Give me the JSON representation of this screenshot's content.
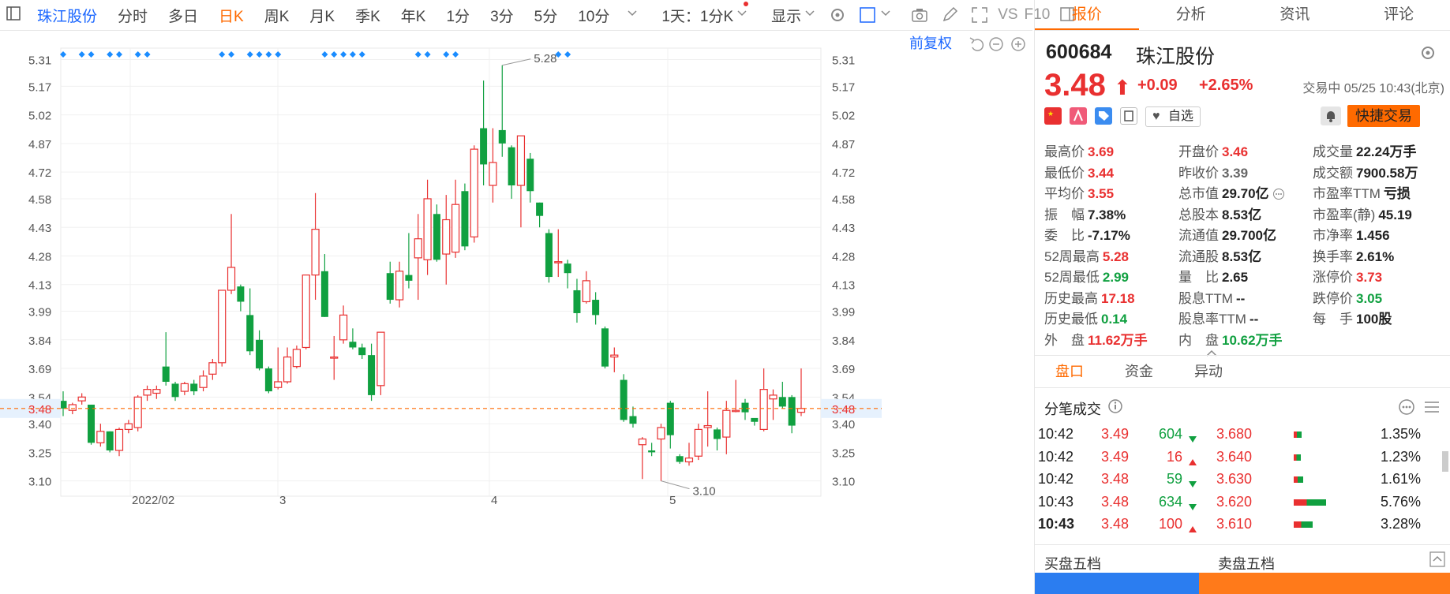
{
  "toolbar": {
    "stock_name": "珠江股份",
    "periods": [
      "分时",
      "多日",
      "日K",
      "周K",
      "月K",
      "季K",
      "年K",
      "1分",
      "3分",
      "5分",
      "10分"
    ],
    "active_period": "日K",
    "interval": "1天：1分K",
    "display": "显示",
    "vs_label": "VS",
    "f10_label": "F10"
  },
  "chart": {
    "adjust_label": "前复权",
    "y_ticks": [
      "5.31",
      "5.17",
      "5.02",
      "4.87",
      "4.72",
      "4.58",
      "4.43",
      "4.28",
      "4.13",
      "3.99",
      "3.84",
      "3.69",
      "3.54",
      "3.40",
      "3.25",
      "3.10"
    ],
    "x_labels": [
      "2022/02",
      "3",
      "4",
      "5"
    ],
    "current_price_label": "3.48",
    "high_label": "5.28",
    "low_label": "3.10",
    "colors": {
      "up": "#e93030",
      "down": "#10a040",
      "price_line": "#ff6a00",
      "marker": "#1a8cff"
    }
  },
  "chart_data": {
    "type": "candlestick",
    "ylim": [
      3.02,
      5.37
    ],
    "current": 3.48,
    "candles": [
      [
        3.52,
        3.48,
        3.57,
        3.44
      ],
      [
        3.47,
        3.5,
        3.51,
        3.45
      ],
      [
        3.52,
        3.54,
        3.56,
        3.5
      ],
      [
        3.5,
        3.3,
        3.5,
        3.29
      ],
      [
        3.3,
        3.36,
        3.4,
        3.28
      ],
      [
        3.36,
        3.26,
        3.36,
        3.25
      ],
      [
        3.26,
        3.37,
        3.38,
        3.23
      ],
      [
        3.37,
        3.4,
        3.42,
        3.35
      ],
      [
        3.38,
        3.54,
        3.55,
        3.36
      ],
      [
        3.55,
        3.58,
        3.6,
        3.52
      ],
      [
        3.56,
        3.58,
        3.6,
        3.53
      ],
      [
        3.7,
        3.62,
        3.88,
        3.6
      ],
      [
        3.61,
        3.54,
        3.62,
        3.52
      ],
      [
        3.57,
        3.61,
        3.62,
        3.55
      ],
      [
        3.61,
        3.57,
        3.63,
        3.55
      ],
      [
        3.59,
        3.65,
        3.68,
        3.57
      ],
      [
        3.66,
        3.72,
        3.74,
        3.63
      ],
      [
        3.72,
        4.1,
        4.1,
        3.7
      ],
      [
        4.1,
        4.22,
        4.5,
        4.08
      ],
      [
        4.12,
        4.04,
        4.13,
        3.99
      ],
      [
        3.97,
        3.78,
        4.11,
        3.76
      ],
      [
        3.84,
        3.69,
        3.89,
        3.68
      ],
      [
        3.69,
        3.57,
        3.7,
        3.56
      ],
      [
        3.59,
        3.62,
        3.8,
        3.58
      ],
      [
        3.62,
        3.75,
        3.8,
        3.61
      ],
      [
        3.7,
        3.79,
        3.81,
        3.69
      ],
      [
        3.8,
        4.18,
        4.18,
        3.79
      ],
      [
        4.18,
        4.42,
        4.61,
        4.05
      ],
      [
        4.2,
        3.96,
        4.29,
        3.96
      ],
      [
        3.75,
        3.75,
        3.86,
        3.63
      ],
      [
        3.84,
        3.97,
        4.02,
        3.82
      ],
      [
        3.83,
        3.8,
        3.9,
        3.79
      ],
      [
        3.8,
        3.76,
        3.82,
        3.74
      ],
      [
        3.76,
        3.55,
        3.82,
        3.52
      ],
      [
        3.6,
        3.88,
        3.88,
        3.55
      ],
      [
        4.19,
        4.05,
        4.25,
        4.03
      ],
      [
        4.05,
        4.2,
        4.25,
        4.01
      ],
      [
        4.18,
        4.15,
        4.4,
        4.11
      ],
      [
        4.27,
        4.37,
        4.5,
        4.05
      ],
      [
        4.26,
        4.58,
        4.68,
        4.18
      ],
      [
        4.5,
        4.26,
        4.55,
        4.25
      ],
      [
        4.29,
        4.47,
        4.6,
        4.13
      ],
      [
        4.3,
        4.55,
        4.68,
        4.27
      ],
      [
        4.62,
        4.33,
        4.66,
        4.31
      ],
      [
        4.38,
        4.84,
        4.86,
        4.35
      ],
      [
        4.95,
        4.76,
        5.2,
        4.65
      ],
      [
        4.65,
        4.77,
        4.95,
        4.56
      ],
      [
        4.94,
        4.87,
        5.28,
        4.8
      ],
      [
        4.85,
        4.65,
        4.86,
        4.58
      ],
      [
        4.65,
        4.91,
        4.91,
        4.43
      ],
      [
        4.79,
        4.62,
        4.82,
        4.56
      ],
      [
        4.56,
        4.49,
        4.56,
        4.43
      ],
      [
        4.4,
        4.17,
        4.42,
        4.14
      ],
      [
        4.25,
        4.25,
        4.42,
        4.17
      ],
      [
        4.24,
        4.19,
        4.26,
        4.11
      ],
      [
        4.1,
        3.98,
        4.16,
        3.93
      ],
      [
        4.04,
        4.15,
        4.2,
        4.03
      ],
      [
        4.05,
        3.97,
        4.09,
        3.92
      ],
      [
        3.9,
        3.7,
        3.91,
        3.69
      ],
      [
        3.75,
        3.76,
        3.8,
        3.67
      ],
      [
        3.63,
        3.42,
        3.66,
        3.41
      ],
      [
        3.44,
        3.4,
        3.49,
        3.38
      ],
      [
        3.29,
        3.32,
        3.33,
        3.11
      ],
      [
        3.26,
        3.25,
        3.3,
        3.23
      ],
      [
        3.32,
        3.38,
        3.4,
        3.1
      ],
      [
        3.51,
        3.34,
        3.52,
        3.27
      ],
      [
        3.23,
        3.2,
        3.24,
        3.19
      ],
      [
        3.2,
        3.22,
        3.3,
        3.18
      ],
      [
        3.23,
        3.37,
        3.4,
        3.21
      ],
      [
        3.38,
        3.39,
        3.57,
        3.28
      ],
      [
        3.37,
        3.32,
        3.38,
        3.26
      ],
      [
        3.33,
        3.47,
        3.52,
        3.24
      ],
      [
        3.47,
        3.47,
        3.63,
        3.46
      ],
      [
        3.51,
        3.46,
        3.53,
        3.42
      ],
      [
        3.43,
        3.41,
        3.42,
        3.39
      ],
      [
        3.37,
        3.58,
        3.69,
        3.36
      ],
      [
        3.53,
        3.55,
        3.58,
        3.42
      ],
      [
        3.54,
        3.49,
        3.62,
        3.48
      ],
      [
        3.54,
        3.39,
        3.55,
        3.35
      ],
      [
        3.46,
        3.48,
        3.69,
        3.44
      ]
    ],
    "markers": [
      0,
      2,
      3,
      5,
      6,
      8,
      9,
      17,
      18,
      20,
      21,
      22,
      23,
      28,
      29,
      30,
      31,
      32,
      38,
      39,
      41,
      42,
      53,
      54
    ]
  },
  "panel": {
    "tabs": [
      "报价",
      "分析",
      "资讯",
      "评论"
    ],
    "active_tab": "报价",
    "code": "600684",
    "name": "珠江股份",
    "price": "3.48",
    "change": "+0.09",
    "change_pct": "+2.65%",
    "status": "交易中 05/25 10:43(北京)",
    "watch_label": "自选",
    "quick_trade": "快捷交易",
    "stats": [
      [
        {
          "l": "最高价",
          "v": "3.69",
          "c": "red"
        },
        {
          "l": "开盘价",
          "v": "3.46",
          "c": "red"
        },
        {
          "l": "成交量",
          "v": "22.24万手",
          "c": ""
        }
      ],
      [
        {
          "l": "最低价",
          "v": "3.44",
          "c": "red"
        },
        {
          "l": "昨收价",
          "v": "3.39",
          "c": "gray"
        },
        {
          "l": "成交额",
          "v": "7900.58万",
          "c": ""
        }
      ],
      [
        {
          "l": "平均价",
          "v": "3.55",
          "c": "red"
        },
        {
          "l": "总市值",
          "v": "29.70亿",
          "c": ""
        },
        {
          "l": "市盈率TTM",
          "v": "亏损",
          "c": ""
        }
      ],
      [
        {
          "l": "振　幅",
          "v": "7.38%",
          "c": ""
        },
        {
          "l": "总股本",
          "v": "8.53亿",
          "c": ""
        },
        {
          "l": "市盈率(静)",
          "v": "45.19",
          "c": ""
        }
      ],
      [
        {
          "l": "委　比",
          "v": "-7.17%",
          "c": ""
        },
        {
          "l": "流通值",
          "v": "29.700亿",
          "c": ""
        },
        {
          "l": "市净率",
          "v": "1.456",
          "c": ""
        }
      ],
      [
        {
          "l": "52周最高",
          "v": "5.28",
          "c": "red"
        },
        {
          "l": "流通股",
          "v": "8.53亿",
          "c": ""
        },
        {
          "l": "换手率",
          "v": "2.61%",
          "c": ""
        }
      ],
      [
        {
          "l": "52周最低",
          "v": "2.99",
          "c": "green"
        },
        {
          "l": "量　比",
          "v": "2.65",
          "c": ""
        },
        {
          "l": "涨停价",
          "v": "3.73",
          "c": "red"
        }
      ],
      [
        {
          "l": "历史最高",
          "v": "17.18",
          "c": "red"
        },
        {
          "l": "股息TTM",
          "v": "--",
          "c": ""
        },
        {
          "l": "跌停价",
          "v": "3.05",
          "c": "green"
        }
      ],
      [
        {
          "l": "历史最低",
          "v": "0.14",
          "c": "green"
        },
        {
          "l": "股息率TTM",
          "v": "--",
          "c": ""
        },
        {
          "l": "每　手",
          "v": "100股",
          "c": ""
        }
      ],
      [
        {
          "l": "外　盘",
          "v": "11.62万手",
          "c": "red"
        },
        {
          "l": "内　盘",
          "v": "10.62万手",
          "c": "green"
        },
        {
          "l": "",
          "v": "",
          "c": ""
        }
      ]
    ],
    "subtabs": [
      "盘口",
      "资金",
      "异动"
    ],
    "active_subtab": "盘口",
    "ticks_title": "分笔成交",
    "ticks": [
      {
        "t": "10:42",
        "p": "3.49",
        "v": "604",
        "d": "down",
        "bp": "3.680",
        "pct": "1.35%"
      },
      {
        "t": "10:42",
        "p": "3.49",
        "v": "16",
        "d": "up",
        "bp": "3.640",
        "pct": "1.23%"
      },
      {
        "t": "10:42",
        "p": "3.48",
        "v": "59",
        "d": "down",
        "bp": "3.630",
        "pct": "1.61%"
      },
      {
        "t": "10:43",
        "p": "3.48",
        "v": "634",
        "d": "down",
        "bp": "3.620",
        "pct": "5.76%"
      },
      {
        "t": "10:43",
        "p": "3.48",
        "v": "100",
        "d": "up",
        "bp": "3.610",
        "pct": "3.28%"
      }
    ],
    "buy5": "买盘五档",
    "sell5": "卖盘五档"
  }
}
